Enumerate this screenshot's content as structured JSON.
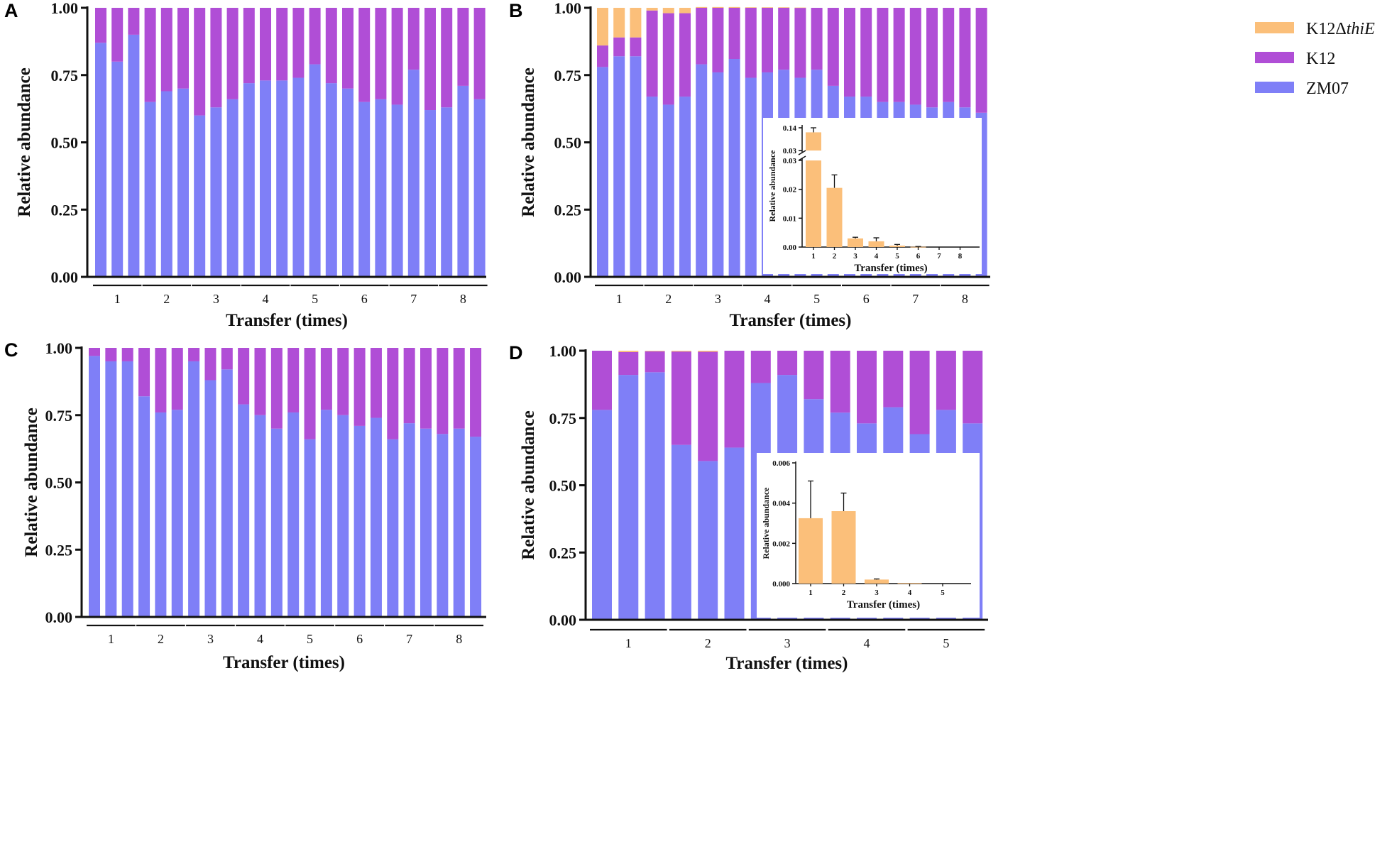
{
  "colors": {
    "ZM07": "#7f7ff7",
    "K12": "#b04ed6",
    "K12_thiE": "#fbbf7a",
    "axis": "#111111"
  },
  "legend": {
    "items": [
      {
        "key": "K12_thiE",
        "label_prefix": "K12Δ",
        "label_italic": "thiE"
      },
      {
        "key": "K12",
        "label_prefix": "K12",
        "label_italic": ""
      },
      {
        "key": "ZM07",
        "label_prefix": "ZM07",
        "label_italic": ""
      }
    ]
  },
  "chart_data": [
    {
      "panel": "A",
      "type": "bar",
      "stacked": true,
      "title": "",
      "xlabel": "Transfer (times)",
      "ylabel": "Relative abundance",
      "ylim": [
        0,
        1
      ],
      "yticks": [
        "0.00",
        "0.25",
        "0.50",
        "0.75",
        "1.00"
      ],
      "groups": [
        "1",
        "2",
        "3",
        "4",
        "5",
        "6",
        "7",
        "8"
      ],
      "bars_per_group": 3,
      "series": [
        {
          "name": "ZM07",
          "color_key": "ZM07",
          "values": [
            0.87,
            0.8,
            0.9,
            0.65,
            0.69,
            0.7,
            0.6,
            0.63,
            0.66,
            0.72,
            0.73,
            0.73,
            0.74,
            0.79,
            0.72,
            0.7,
            0.65,
            0.66,
            0.64,
            0.77,
            0.62,
            0.63,
            0.71,
            0.66
          ]
        },
        {
          "name": "K12",
          "color_key": "K12",
          "values": [
            0.13,
            0.2,
            0.1,
            0.35,
            0.31,
            0.3,
            0.4,
            0.37,
            0.34,
            0.28,
            0.27,
            0.27,
            0.26,
            0.21,
            0.28,
            0.3,
            0.35,
            0.34,
            0.36,
            0.23,
            0.38,
            0.37,
            0.29,
            0.34
          ]
        }
      ]
    },
    {
      "panel": "B",
      "type": "bar",
      "stacked": true,
      "title": "",
      "xlabel": "Transfer (times)",
      "ylabel": "Relative abundance",
      "ylim": [
        0,
        1
      ],
      "yticks": [
        "0.00",
        "0.25",
        "0.50",
        "0.75",
        "1.00"
      ],
      "groups": [
        "1",
        "2",
        "3",
        "4",
        "5",
        "6",
        "7",
        "8"
      ],
      "bars_per_group": 3,
      "series": [
        {
          "name": "ZM07",
          "color_key": "ZM07",
          "values": [
            0.78,
            0.82,
            0.82,
            0.67,
            0.64,
            0.67,
            0.79,
            0.76,
            0.81,
            0.74,
            0.76,
            0.77,
            0.74,
            0.77,
            0.71,
            0.67,
            0.67,
            0.65,
            0.65,
            0.64,
            0.63,
            0.65,
            0.63,
            0.61
          ]
        },
        {
          "name": "K12",
          "color_key": "K12",
          "values": [
            0.08,
            0.07,
            0.07,
            0.32,
            0.34,
            0.31,
            0.21,
            0.24,
            0.19,
            0.26,
            0.24,
            0.23,
            0.26,
            0.23,
            0.29,
            0.33,
            0.33,
            0.35,
            0.35,
            0.36,
            0.37,
            0.35,
            0.37,
            0.39
          ]
        },
        {
          "name": "K12ΔthiE",
          "color_key": "K12_thiE",
          "values": [
            0.14,
            0.11,
            0.11,
            0.01,
            0.02,
            0.02,
            0.003,
            0.003,
            0.003,
            0.002,
            0.002,
            0.002,
            0.001,
            0,
            0,
            0,
            0,
            0,
            0,
            0,
            0,
            0,
            0,
            0
          ]
        }
      ],
      "inset": {
        "type": "bar",
        "xlabel": "Transfer (times)",
        "ylabel": "Relative abundance",
        "categories": [
          "1",
          "2",
          "3",
          "4",
          "5",
          "6",
          "7",
          "8"
        ],
        "values": [
          0.138,
          0.0205,
          0.003,
          0.002,
          0.0005,
          0.0001,
          0,
          0
        ],
        "errors": [
          0.002,
          0.0045,
          0.0004,
          0.0012,
          0.0004,
          0.0001,
          0,
          0
        ],
        "yticks_lower": [
          "0.00",
          "0.01",
          "0.02",
          "0.03"
        ],
        "yticks_upper": [
          "0.03",
          "0.14"
        ],
        "axis_break": [
          0.03,
          0.13
        ]
      }
    },
    {
      "panel": "C",
      "type": "bar",
      "stacked": true,
      "title": "",
      "xlabel": "Transfer (times)",
      "ylabel": "Relative abundance",
      "ylim": [
        0,
        1
      ],
      "yticks": [
        "0.00",
        "0.25",
        "0.50",
        "0.75",
        "1.00"
      ],
      "groups": [
        "1",
        "2",
        "3",
        "4",
        "5",
        "6",
        "7",
        "8"
      ],
      "bars_per_group": 3,
      "series": [
        {
          "name": "ZM07",
          "color_key": "ZM07",
          "values": [
            0.97,
            0.95,
            0.95,
            0.82,
            0.76,
            0.77,
            0.95,
            0.88,
            0.92,
            0.79,
            0.75,
            0.7,
            0.76,
            0.66,
            0.77,
            0.75,
            0.71,
            0.74,
            0.66,
            0.72,
            0.7,
            0.68,
            0.7,
            0.67
          ]
        },
        {
          "name": "K12",
          "color_key": "K12",
          "values": [
            0.03,
            0.05,
            0.05,
            0.18,
            0.24,
            0.23,
            0.05,
            0.12,
            0.08,
            0.21,
            0.25,
            0.3,
            0.24,
            0.34,
            0.23,
            0.25,
            0.29,
            0.26,
            0.34,
            0.28,
            0.3,
            0.32,
            0.3,
            0.33
          ]
        }
      ]
    },
    {
      "panel": "D",
      "type": "bar",
      "stacked": true,
      "title": "",
      "xlabel": "Transfer (times)",
      "ylabel": "Relative abundance",
      "ylim": [
        0,
        1
      ],
      "yticks": [
        "0.00",
        "0.25",
        "0.50",
        "0.75",
        "1.00"
      ],
      "groups": [
        "1",
        "2",
        "3",
        "4",
        "5"
      ],
      "bars_per_group": 3,
      "series": [
        {
          "name": "ZM07",
          "color_key": "ZM07",
          "values": [
            0.78,
            0.91,
            0.92,
            0.65,
            0.59,
            0.64,
            0.88,
            0.91,
            0.82,
            0.77,
            0.73,
            0.79,
            0.69,
            0.78,
            0.73
          ]
        },
        {
          "name": "K12",
          "color_key": "K12",
          "values": [
            0.22,
            0.085,
            0.078,
            0.347,
            0.406,
            0.36,
            0.12,
            0.09,
            0.18,
            0.23,
            0.27,
            0.21,
            0.31,
            0.22,
            0.27
          ]
        },
        {
          "name": "K12ΔthiE",
          "color_key": "K12_thiE",
          "values": [
            0,
            0.005,
            0.002,
            0.003,
            0.004,
            0,
            0,
            0,
            0,
            0,
            0,
            0,
            0,
            0,
            0
          ]
        }
      ],
      "inset": {
        "type": "bar",
        "xlabel": "Transfer (times)",
        "ylabel": "Relative abundance",
        "categories": [
          "1",
          "2",
          "3",
          "4",
          "5"
        ],
        "values": [
          0.00325,
          0.0036,
          0.0002,
          3e-05,
          0
        ],
        "errors": [
          0.00185,
          0.0009,
          3e-05,
          0,
          0
        ],
        "ylim": [
          0,
          0.006
        ],
        "yticks": [
          "0.000",
          "0.002",
          "0.004",
          "0.006"
        ]
      }
    }
  ]
}
